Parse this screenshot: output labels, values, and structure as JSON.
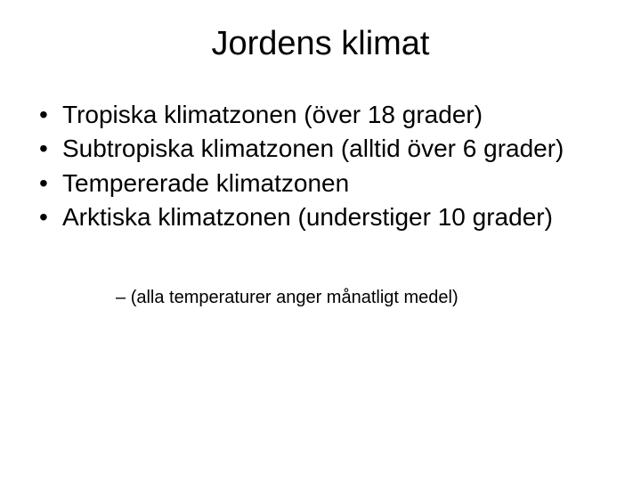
{
  "slide": {
    "title": "Jordens klimat",
    "bullets": [
      "Tropiska klimatzonen (över 18 grader)",
      "Subtropiska klimatzonen (alltid över 6 grader)",
      "Tempererade klimatzonen",
      "Arktiska klimatzonen (understiger 10 grader)"
    ],
    "sub_note": "(alla temperaturer anger månatligt medel)",
    "colors": {
      "background": "#ffffff",
      "text": "#000000"
    },
    "typography": {
      "title_fontsize": 38,
      "bullet_fontsize": 28,
      "subnote_fontsize": 20,
      "font_family": "Arial"
    }
  }
}
